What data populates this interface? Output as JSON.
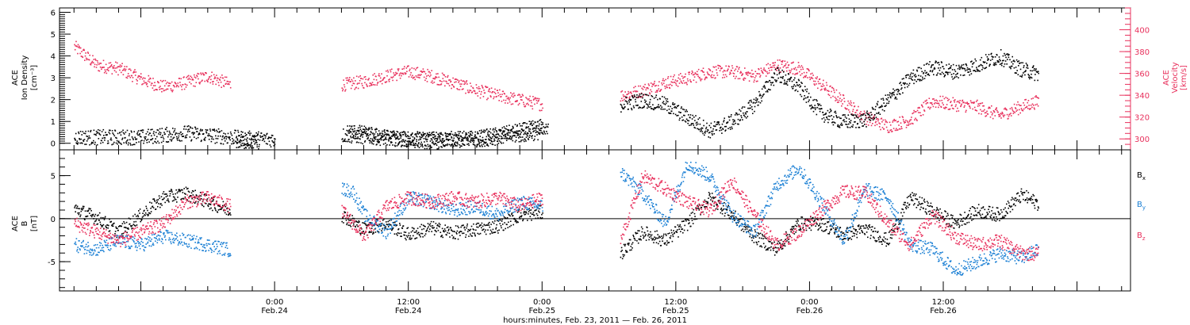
{
  "chart_data": [
    {
      "type": "scatter",
      "panel": "top",
      "left_label_lines": [
        "ACE",
        "Ion Density",
        "[cm⁻³]"
      ],
      "right_label_lines": [
        "ACE",
        "Velocity",
        "[km/s]"
      ],
      "left_axis": {
        "ylim": [
          -0.3,
          6.2
        ],
        "ticks": [
          "0",
          "1",
          "2",
          "3",
          "4",
          "5",
          "6"
        ]
      },
      "right_axis": {
        "ylim": [
          290,
          420
        ],
        "ticks": [
          "300",
          "320",
          "340",
          "360",
          "380",
          "400"
        ]
      },
      "colors": {
        "density": "#000000",
        "velocity": "#e8305c"
      },
      "series": [
        {
          "key": "density",
          "axis": "left",
          "color": "#000000",
          "segments": [
            [
              [
                -18,
                0.3
              ],
              [
                -12,
                0.3
              ],
              [
                -8,
                0.5
              ],
              [
                -6,
                0.4
              ],
              [
                -3,
                0.25
              ],
              [
                0,
                0.2
              ],
              [
                -1,
                0.2
              ]
            ],
            [
              [
                6,
                0.4
              ],
              [
                12,
                0.2
              ],
              [
                18,
                0.25
              ],
              [
                21,
                0.5
              ],
              [
                23,
                0.7
              ],
              [
                24,
                0.8
              ]
            ],
            [
              [
                -3.5,
                0.1
              ],
              [
                -1.5,
                0.1
              ]
            ],
            [
              [
                6.5,
                0.6
              ],
              [
                10,
                0.3
              ],
              [
                14,
                0.1
              ],
              [
                18,
                0.2
              ],
              [
                22,
                0.4
              ],
              [
                24.5,
                0.6
              ]
            ],
            [
              [
                31,
                1.8
              ],
              [
                33,
                2.0
              ],
              [
                35,
                1.8
              ],
              [
                37,
                1.2
              ],
              [
                39,
                0.6
              ],
              [
                41,
                1.0
              ],
              [
                43,
                1.8
              ],
              [
                45,
                3.2
              ],
              [
                47,
                2.6
              ],
              [
                49,
                1.4
              ],
              [
                51,
                1.0
              ],
              [
                53,
                1.1
              ],
              [
                55,
                2.0
              ],
              [
                57,
                3.0
              ],
              [
                59,
                3.5
              ],
              [
                61,
                3.3
              ],
              [
                63,
                3.6
              ],
              [
                65,
                4.0
              ],
              [
                67,
                3.4
              ],
              [
                68.5,
                3.2
              ]
            ]
          ]
        },
        {
          "key": "velocity",
          "axis": "right",
          "color": "#e8305c",
          "segments": [
            [
              [
                -18,
                385
              ],
              [
                -16,
                368
              ],
              [
                -14,
                365
              ],
              [
                -12,
                355
              ],
              [
                -10,
                348
              ],
              [
                -8,
                352
              ],
              [
                -6,
                358
              ],
              [
                -4,
                350
              ]
            ],
            [
              [
                6,
                350
              ],
              [
                8,
                353
              ],
              [
                10,
                358
              ],
              [
                12,
                362
              ],
              [
                14,
                358
              ],
              [
                16,
                352
              ],
              [
                18,
                345
              ],
              [
                20,
                340
              ],
              [
                22,
                336
              ],
              [
                24,
                332
              ]
            ],
            [
              [
                31,
                340
              ],
              [
                33,
                345
              ],
              [
                35,
                352
              ],
              [
                37,
                356
              ],
              [
                39,
                362
              ],
              [
                41,
                362
              ],
              [
                43,
                358
              ],
              [
                45,
                368
              ],
              [
                47,
                365
              ],
              [
                49,
                350
              ],
              [
                51,
                335
              ],
              [
                53,
                320
              ],
              [
                55,
                312
              ],
              [
                57,
                318
              ],
              [
                59,
                335
              ],
              [
                61,
                332
              ],
              [
                63,
                330
              ],
              [
                65,
                322
              ],
              [
                67,
                330
              ],
              [
                68.5,
                335
              ]
            ]
          ]
        }
      ]
    },
    {
      "type": "scatter",
      "panel": "bottom",
      "left_label_lines": [
        "ACE",
        "B",
        "[nT]"
      ],
      "ylim": [
        -8.4,
        8.0
      ],
      "yticks": [
        "-5",
        "0",
        "5"
      ],
      "legend": [
        {
          "label": "B",
          "sub": "x",
          "color": "#000000"
        },
        {
          "label": "B",
          "sub": "y",
          "color": "#1a7fd4"
        },
        {
          "label": "B",
          "sub": "z",
          "color": "#e8305c"
        }
      ],
      "series": [
        {
          "key": "Bx",
          "color": "#000000",
          "segments": [
            [
              [
                -18,
                1.2
              ],
              [
                -16,
                0.2
              ],
              [
                -14,
                -1.5
              ],
              [
                -12,
                0.5
              ],
              [
                -10,
                2.5
              ],
              [
                -8,
                3.0
              ],
              [
                -6,
                2.0
              ],
              [
                -4,
                1.0
              ]
            ],
            [
              [
                6,
                0.5
              ],
              [
                8,
                -1.2
              ],
              [
                10,
                -0.5
              ],
              [
                12,
                -1.8
              ],
              [
                14,
                -1.0
              ],
              [
                16,
                -1.6
              ],
              [
                18,
                -1.2
              ],
              [
                20,
                -0.8
              ],
              [
                22,
                0.5
              ],
              [
                24,
                0.8
              ]
            ],
            [
              [
                31,
                -4.0
              ],
              [
                33,
                -1.5
              ],
              [
                35,
                -2.5
              ],
              [
                37,
                -0.5
              ],
              [
                39,
                2.5
              ],
              [
                41,
                0.5
              ],
              [
                43,
                -2.0
              ],
              [
                45,
                -3.5
              ],
              [
                47,
                -0.5
              ],
              [
                49,
                -0.5
              ],
              [
                51,
                -1.8
              ],
              [
                53,
                -1.2
              ],
              [
                55,
                -2.5
              ],
              [
                57,
                2.5
              ],
              [
                59,
                1.0
              ],
              [
                61,
                -0.5
              ],
              [
                63,
                1.0
              ],
              [
                65,
                0.5
              ],
              [
                67,
                2.8
              ],
              [
                68.5,
                1.8
              ]
            ]
          ]
        },
        {
          "key": "By",
          "color": "#1a7fd4",
          "segments": [
            [
              [
                -18,
                -3.0
              ],
              [
                -16,
                -3.5
              ],
              [
                -14,
                -2.5
              ],
              [
                -12,
                -3.0
              ],
              [
                -10,
                -2.0
              ],
              [
                -8,
                -2.5
              ],
              [
                -6,
                -3.0
              ],
              [
                -4,
                -3.6
              ]
            ],
            [
              [
                6,
                3.5
              ],
              [
                7,
                3.2
              ],
              [
                8,
                0.5
              ],
              [
                10,
                -1.5
              ],
              [
                12,
                2.5
              ],
              [
                14,
                2.0
              ],
              [
                16,
                1.0
              ],
              [
                18,
                1.5
              ],
              [
                20,
                0.5
              ],
              [
                22,
                2.0
              ],
              [
                24,
                1.5
              ]
            ],
            [
              [
                31,
                5.5
              ],
              [
                33,
                3.0
              ],
              [
                35,
                -0.5
              ],
              [
                37,
                6.5
              ],
              [
                39,
                5.0
              ],
              [
                41,
                0.5
              ],
              [
                43,
                -1.5
              ],
              [
                45,
                4.0
              ],
              [
                47,
                6.0
              ],
              [
                49,
                2.0
              ],
              [
                51,
                -2.5
              ],
              [
                53,
                3.5
              ],
              [
                55,
                2.5
              ],
              [
                57,
                -3.0
              ],
              [
                59,
                -3.5
              ],
              [
                61,
                -6.0
              ],
              [
                63,
                -5.0
              ],
              [
                65,
                -4.0
              ],
              [
                67,
                -4.5
              ],
              [
                68.5,
                -3.5
              ]
            ]
          ]
        },
        {
          "key": "Bz",
          "color": "#e8305c",
          "segments": [
            [
              [
                -18,
                -0.5
              ],
              [
                -16,
                -1.5
              ],
              [
                -14,
                -2.5
              ],
              [
                -12,
                -1.5
              ],
              [
                -10,
                -0.5
              ],
              [
                -8,
                2.0
              ],
              [
                -6,
                2.5
              ],
              [
                -4,
                1.5
              ]
            ],
            [
              [
                6,
                1.0
              ],
              [
                8,
                -2.0
              ],
              [
                10,
                1.5
              ],
              [
                12,
                2.5
              ],
              [
                14,
                2.0
              ],
              [
                16,
                2.5
              ],
              [
                18,
                2.0
              ],
              [
                20,
                2.5
              ],
              [
                22,
                1.5
              ],
              [
                24,
                2.5
              ]
            ],
            [
              [
                31,
                -2.5
              ],
              [
                33,
                5.0
              ],
              [
                35,
                3.5
              ],
              [
                37,
                2.0
              ],
              [
                39,
                1.0
              ],
              [
                41,
                4.5
              ],
              [
                43,
                0.5
              ],
              [
                45,
                -3.0
              ],
              [
                47,
                -1.5
              ],
              [
                49,
                1.0
              ],
              [
                51,
                3.2
              ],
              [
                53,
                3.0
              ],
              [
                55,
                -0.5
              ],
              [
                57,
                -3.0
              ],
              [
                59,
                0.5
              ],
              [
                61,
                -2.0
              ],
              [
                63,
                -3.0
              ],
              [
                65,
                -2.5
              ],
              [
                67,
                -4.0
              ],
              [
                68.5,
                -4.0
              ]
            ]
          ]
        }
      ]
    },
    {
      "type": "axis",
      "xlim": [
        -19.3,
        76.8
      ],
      "major_ticks": [
        0,
        12,
        24,
        36,
        48,
        60
      ],
      "time_labels": [
        "0:00",
        "12:00",
        "0:00",
        "12:00",
        "0:00",
        "12:00"
      ],
      "date_labels": [
        "Feb.24",
        "Feb.24",
        "Feb.25",
        "Feb.25",
        "Feb.26",
        "Feb.26"
      ],
      "xlabel": "hours:minutes, Feb. 23, 2011 — Feb. 26, 2011"
    }
  ]
}
